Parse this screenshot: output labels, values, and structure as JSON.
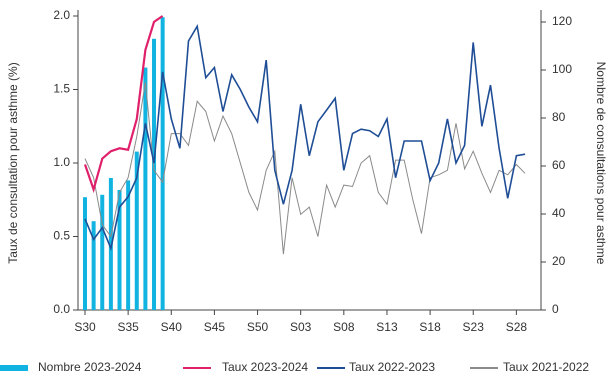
{
  "chart_data": {
    "type": "combo",
    "ylabel": "Taux de consultation pour asthme (%)",
    "y2label": "Nombre de consultations pour asthme",
    "categories": [
      "S30",
      null,
      null,
      null,
      null,
      "S35",
      null,
      null,
      null,
      null,
      "S40",
      null,
      null,
      null,
      null,
      "S45",
      null,
      null,
      null,
      null,
      "S50",
      null,
      null,
      null,
      null,
      "S03",
      null,
      null,
      null,
      null,
      "S08",
      null,
      null,
      null,
      null,
      "S13",
      null,
      null,
      null,
      null,
      "S18",
      null,
      null,
      null,
      null,
      "S23",
      null,
      null,
      null,
      null,
      "S28",
      null
    ],
    "ylim": [
      0,
      2.0
    ],
    "yticks": [
      {
        "value": 0,
        "label": "0.0"
      },
      0.5,
      {
        "value": 1,
        "label": "1.0"
      },
      1.5,
      {
        "value": 2,
        "label": "2.0"
      }
    ],
    "y2lim": [
      0,
      122.5
    ],
    "y2ticks": [
      0,
      20,
      40,
      60,
      80,
      100,
      120
    ],
    "series": [
      {
        "name": "Nombre 2023-2024",
        "type": "bar",
        "axis": "y2",
        "color": "#11b3e0",
        "values": [
          47,
          37,
          48,
          55,
          50,
          54,
          66,
          101,
          113,
          122,
          null,
          null,
          null,
          null,
          null,
          null,
          null,
          null,
          null,
          null,
          null,
          null,
          null,
          null,
          null,
          null,
          null,
          null,
          null,
          null,
          null,
          null,
          null,
          null,
          null,
          null,
          null,
          null,
          null,
          null,
          null,
          null,
          null,
          null,
          null,
          null,
          null,
          null,
          null,
          null,
          null,
          null
        ]
      },
      {
        "name": "Taux 2023-2024",
        "type": "line",
        "color": "#e0206a",
        "values": [
          0.99,
          0.82,
          1.03,
          1.08,
          1.1,
          1.09,
          1.3,
          1.77,
          1.96,
          2.0,
          null,
          null,
          null,
          null,
          null,
          null,
          null,
          null,
          null,
          null,
          null,
          null,
          null,
          null,
          null,
          null,
          null,
          null,
          null,
          null,
          null,
          null,
          null,
          null,
          null,
          null,
          null,
          null,
          null,
          null,
          null,
          null,
          null,
          null,
          null,
          null,
          null,
          null,
          null,
          null,
          null,
          null
        ]
      },
      {
        "name": "Taux 2022-2023",
        "type": "line",
        "color": "#1f4e96",
        "values": [
          0.62,
          0.48,
          0.56,
          0.42,
          0.7,
          0.77,
          0.9,
          1.27,
          1.0,
          1.62,
          1.3,
          1.1,
          1.83,
          1.93,
          1.58,
          1.65,
          1.35,
          1.6,
          1.5,
          1.38,
          1.28,
          1.7,
          0.95,
          0.72,
          0.95,
          1.4,
          1.05,
          1.28,
          1.36,
          1.44,
          0.95,
          1.2,
          1.23,
          1.22,
          1.18,
          1.3,
          0.9,
          1.15,
          1.15,
          1.15,
          0.88,
          1.0,
          1.3,
          1.0,
          1.12,
          1.82,
          1.25,
          1.53,
          1.1,
          0.76,
          1.05,
          1.06
        ]
      },
      {
        "name": "Taux 2021-2022",
        "type": "line",
        "color": "#8a8a8a",
        "values": [
          1.03,
          0.9,
          0.58,
          0.5,
          0.8,
          0.9,
          1.18,
          1.55,
          0.95,
          0.87,
          1.2,
          1.2,
          1.12,
          1.42,
          1.35,
          1.15,
          1.32,
          1.2,
          1.0,
          0.8,
          0.68,
          0.95,
          1.08,
          0.38,
          0.9,
          0.65,
          0.7,
          0.5,
          0.85,
          0.7,
          0.85,
          0.84,
          1.0,
          1.05,
          0.8,
          0.72,
          1.02,
          1.02,
          0.75,
          0.52,
          0.9,
          0.92,
          0.95,
          1.27,
          0.96,
          1.08,
          0.93,
          0.8,
          0.95,
          0.92,
          0.99,
          0.93
        ]
      }
    ]
  }
}
